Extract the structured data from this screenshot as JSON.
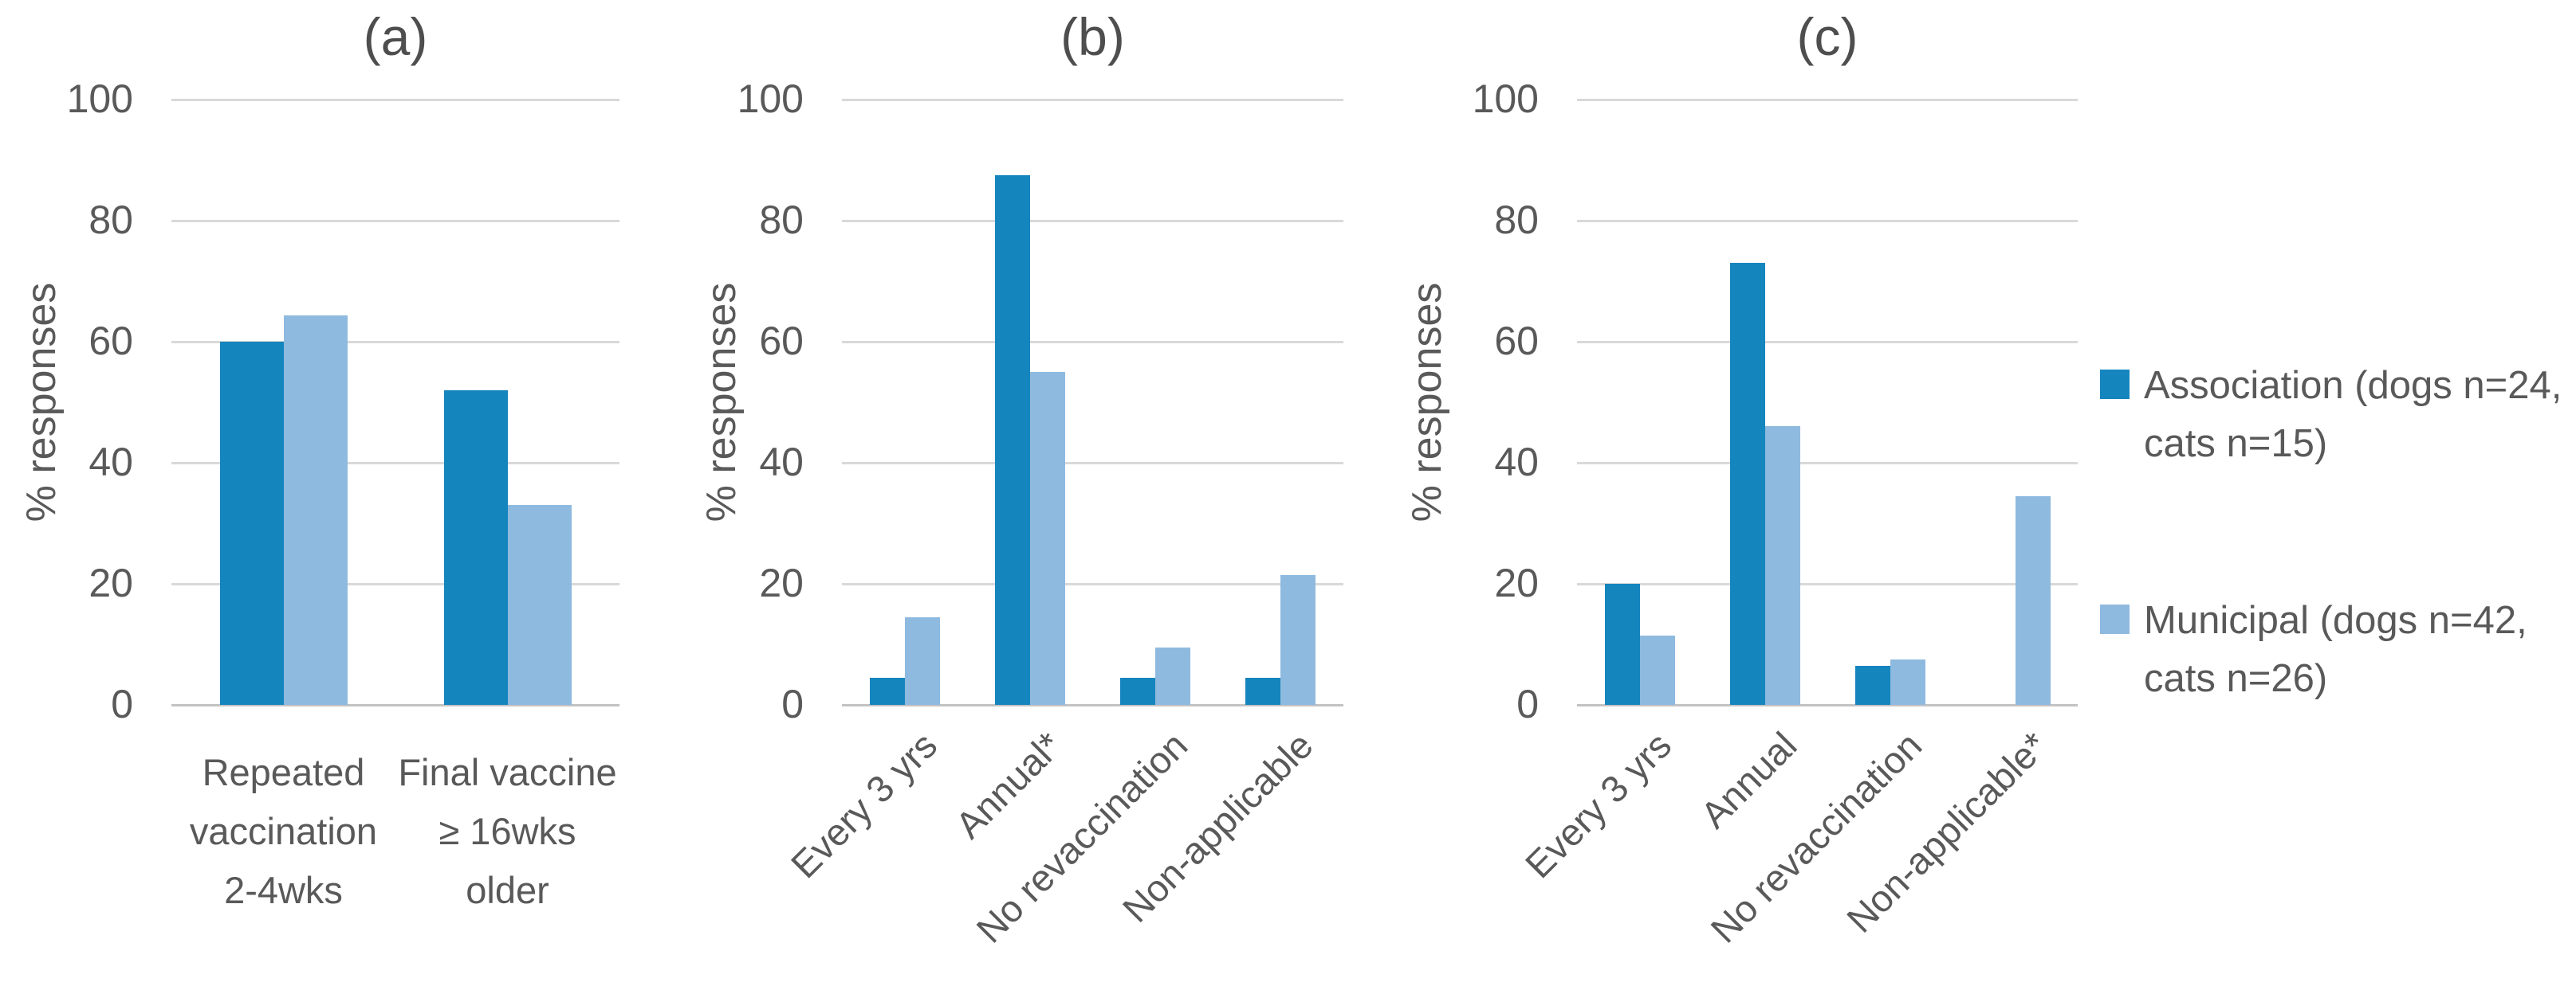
{
  "figure": {
    "background": "#ffffff",
    "text_color": "#595959",
    "grid_color": "#d9d9d9",
    "axis_color": "#c3c3c3",
    "association_color": "#1585be",
    "municipal_color": "#8fbadf",
    "yticks": [
      "0",
      "20",
      "40",
      "60",
      "80",
      "100"
    ]
  },
  "legend": {
    "items": [
      {
        "name": "association",
        "color": "#1585be",
        "line1": "Association (dogs n=24,",
        "line2": "cats n=15)"
      },
      {
        "name": "municipal",
        "color": "#8fbadf",
        "line1": "Municipal (dogs n=42,",
        "line2": "cats n=26)"
      }
    ]
  },
  "chart_data": [
    {
      "type": "bar",
      "panel": "(a)",
      "ylabel": "% responses",
      "ylim": [
        0,
        100
      ],
      "grid": true,
      "legend_position": "right-of-figure",
      "categories": [
        "Repeated vaccination 2-4wks",
        "Final vaccine ≥ 16wks older"
      ],
      "categories_wrapped": [
        [
          "Repeated",
          "vaccination",
          "2-4wks"
        ],
        [
          "Final vaccine",
          "≥ 16wks",
          "older"
        ]
      ],
      "series": [
        {
          "name": "Association (dogs n=24, cats n=15)",
          "values": [
            60,
            52
          ]
        },
        {
          "name": "Municipal (dogs n=42, cats n=26)",
          "values": [
            64.3,
            33
          ]
        }
      ],
      "label_style": "horizontal"
    },
    {
      "type": "bar",
      "panel": "(b)",
      "ylabel": "% responses",
      "ylim": [
        0,
        100
      ],
      "grid": true,
      "categories": [
        "Every 3 yrs",
        "Annual*",
        "No revaccination",
        "Non-applicable"
      ],
      "categories_wrapped": [],
      "series": [
        {
          "name": "Association (dogs n=24, cats n=15)",
          "values": [
            4.5,
            87.5,
            4.5,
            4.5
          ]
        },
        {
          "name": "Municipal (dogs n=42, cats n=26)",
          "values": [
            14.5,
            55,
            9.5,
            21.5
          ]
        }
      ],
      "label_style": "rotated"
    },
    {
      "type": "bar",
      "panel": "(c)",
      "ylabel": "% responses",
      "ylim": [
        0,
        100
      ],
      "grid": true,
      "categories": [
        "Every 3 yrs",
        "Annual",
        "No revaccination",
        "Non-applicable*"
      ],
      "categories_wrapped": [],
      "series": [
        {
          "name": "Association (dogs n=24, cats n=15)",
          "values": [
            20,
            73,
            6.5,
            0
          ]
        },
        {
          "name": "Municipal (dogs n=42, cats n=26)",
          "values": [
            11.5,
            46,
            7.5,
            34.5
          ]
        }
      ],
      "label_style": "rotated"
    }
  ]
}
